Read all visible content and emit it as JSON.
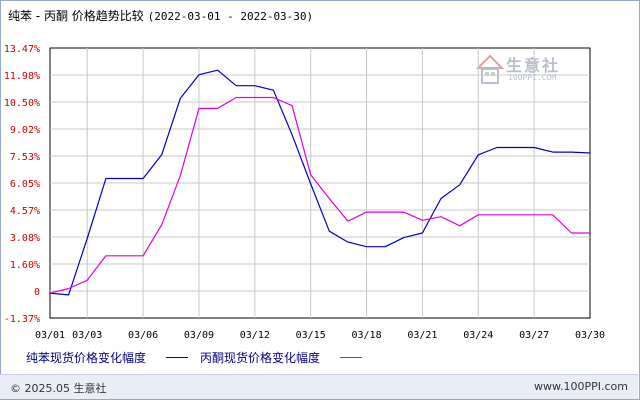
{
  "header": {
    "title": "纯苯 - 丙酮 价格趋势比较",
    "date_range": "(2022-03-01 - 2022-03-30)"
  },
  "watermark": {
    "name": "生意社",
    "url": "100PPI.COM"
  },
  "footer": {
    "copyright": "© 2025.05 生意社",
    "site": "www.100PPI.com"
  },
  "colors": {
    "series1": "#0000cc",
    "series2": "#e000e0",
    "tick_text": "#cc0000",
    "grid": "#c8c8c8"
  },
  "chart_data": {
    "type": "line",
    "title": "纯苯 - 丙酮 价格趋势比较",
    "xlabel": "",
    "ylabel": "",
    "x_ticks": [
      "03/01",
      "03/03",
      "03/06",
      "03/09",
      "03/12",
      "03/15",
      "03/18",
      "03/21",
      "03/24",
      "03/27",
      "03/30"
    ],
    "y_ticks": [
      "13.47%",
      "11.98%",
      "10.50%",
      "9.02%",
      "7.53%",
      "6.05%",
      "4.57%",
      "3.08%",
      "1.60%",
      "0",
      "-1.37%"
    ],
    "ylim": [
      -1.37,
      13.47
    ],
    "grid": true,
    "legend_position": "bottom",
    "series": [
      {
        "name": "纯苯现货价格变化幅度",
        "color": "#0000cc",
        "points": [
          [
            "03/01",
            0
          ],
          [
            "03/02",
            -0.1
          ],
          [
            "03/03",
            3.0
          ],
          [
            "03/04",
            6.3
          ],
          [
            "03/05",
            6.3
          ],
          [
            "03/06",
            6.3
          ],
          [
            "03/07",
            7.6
          ],
          [
            "03/08",
            10.7
          ],
          [
            "03/09",
            12.0
          ],
          [
            "03/10",
            12.25
          ],
          [
            "03/11",
            11.4
          ],
          [
            "03/12",
            11.4
          ],
          [
            "03/13",
            11.15
          ],
          [
            "03/14",
            8.7
          ],
          [
            "03/15",
            6.0
          ],
          [
            "03/16",
            3.4
          ],
          [
            "03/17",
            2.8
          ],
          [
            "03/18",
            2.55
          ],
          [
            "03/19",
            2.55
          ],
          [
            "03/20",
            3.05
          ],
          [
            "03/21",
            3.3
          ],
          [
            "03/22",
            5.2
          ],
          [
            "03/23",
            5.95
          ],
          [
            "03/24",
            7.6
          ],
          [
            "03/25",
            8.0
          ],
          [
            "03/26",
            8.0
          ],
          [
            "03/27",
            8.0
          ],
          [
            "03/28",
            7.75
          ],
          [
            "03/29",
            7.75
          ],
          [
            "03/30",
            7.7
          ]
        ]
      },
      {
        "name": "丙酮现货价格变化幅度",
        "color": "#e000e0",
        "points": [
          [
            "03/01",
            0
          ],
          [
            "03/02",
            0.25
          ],
          [
            "03/03",
            0.7
          ],
          [
            "03/04",
            2.05
          ],
          [
            "03/05",
            2.05
          ],
          [
            "03/06",
            2.05
          ],
          [
            "03/07",
            3.75
          ],
          [
            "03/08",
            6.45
          ],
          [
            "03/09",
            10.15
          ],
          [
            "03/10",
            10.15
          ],
          [
            "03/11",
            10.75
          ],
          [
            "03/12",
            10.75
          ],
          [
            "03/13",
            10.75
          ],
          [
            "03/14",
            10.3
          ],
          [
            "03/15",
            6.5
          ],
          [
            "03/16",
            5.2
          ],
          [
            "03/17",
            3.95
          ],
          [
            "03/18",
            4.45
          ],
          [
            "03/19",
            4.45
          ],
          [
            "03/20",
            4.45
          ],
          [
            "03/21",
            4.0
          ],
          [
            "03/22",
            4.2
          ],
          [
            "03/23",
            3.7
          ],
          [
            "03/24",
            4.3
          ],
          [
            "03/25",
            4.3
          ],
          [
            "03/26",
            4.3
          ],
          [
            "03/27",
            4.3
          ],
          [
            "03/28",
            4.3
          ],
          [
            "03/29",
            3.3
          ],
          [
            "03/30",
            3.3
          ]
        ]
      }
    ]
  }
}
